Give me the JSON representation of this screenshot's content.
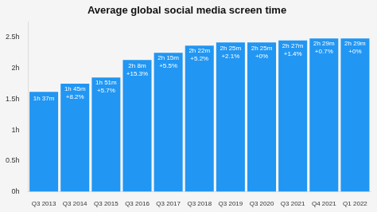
{
  "chart_data": {
    "type": "bar",
    "title": "Average global social media screen time",
    "categories": [
      "Q3 2013",
      "Q3 2014",
      "Q3 2015",
      "Q3 2016",
      "Q3 2017",
      "Q3 2018",
      "Q3 2019",
      "Q3 2020",
      "Q3 2021",
      "Q4 2021",
      "Q1 2022"
    ],
    "values": [
      1.617,
      1.75,
      1.85,
      2.133,
      2.25,
      2.367,
      2.417,
      2.417,
      2.45,
      2.483,
      2.483
    ],
    "value_labels": [
      "1h 37m",
      "1h 45m",
      "1h 51m",
      "2h 8m",
      "2h 15m",
      "2h 22m",
      "2h 25m",
      "2h 25m",
      "2h 27m",
      "2h 29m",
      "2h 29m"
    ],
    "annotations": [
      null,
      "+8.2%",
      "+5.7%",
      "+15.3%",
      "+5.5%",
      "+5.2%",
      "+2.1%",
      "+0%",
      "+1.4%",
      "+0.7%",
      "+0%"
    ],
    "data_labels": true,
    "color": "#2196f3",
    "ylim": [
      0,
      2.75
    ],
    "yticks": [
      {
        "value": 0,
        "label": "0h"
      },
      {
        "value": 0.5,
        "label": "0.5h"
      },
      {
        "value": 1.0,
        "label": "1h"
      },
      {
        "value": 1.5,
        "label": "1.5h"
      },
      {
        "value": 2.0,
        "label": "2h"
      },
      {
        "value": 2.5,
        "label": "2.5h"
      }
    ],
    "grid": false
  }
}
